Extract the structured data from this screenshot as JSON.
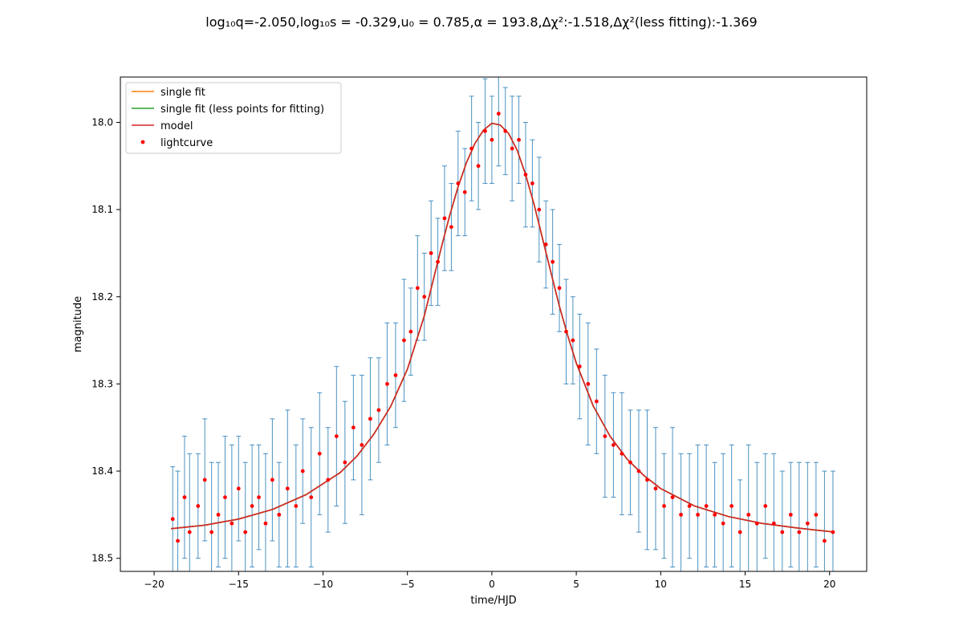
{
  "figure": {
    "title": "log₁₀q=-2.050,log₁₀s = -0.329,u₀ = 0.785,α = 193.8,Δχ²:-1.518,Δχ²(less fitting):-1.369"
  },
  "chart_data": {
    "type": "scatter",
    "title": "log₁₀q=-2.050,log₁₀s = -0.329,u₀ = 0.785,α = 193.8,Δχ²:-1.518,Δχ²(less fitting):-1.369",
    "xlabel": "time/HJD",
    "ylabel": "magnitude",
    "xlim": [
      -22,
      22.2
    ],
    "ylim": [
      18.515,
      17.948
    ],
    "y_inverted": true,
    "xticks": [
      -20,
      -15,
      -10,
      -5,
      0,
      5,
      10,
      15,
      20
    ],
    "xtick_labels": [
      "−20",
      "−15",
      "−10",
      "−5",
      "0",
      "5",
      "10",
      "15",
      "20"
    ],
    "yticks": [
      18.0,
      18.1,
      18.2,
      18.3,
      18.4,
      18.5
    ],
    "ytick_labels": [
      "18.0",
      "18.1",
      "18.2",
      "18.3",
      "18.4",
      "18.5"
    ],
    "grid": false,
    "legend_position": "top-left",
    "colors": {
      "single_fit": "#ff7f0e",
      "single_fit_less": "#2ca02c",
      "model": "#d62728",
      "lightcurve": "#ff0000",
      "errorbar": "#1f77b4"
    },
    "series": [
      {
        "name": "single fit",
        "kind": "line"
      },
      {
        "name": "single fit (less points for fitting)",
        "kind": "line"
      },
      {
        "name": "model",
        "kind": "line",
        "x": [
          -19,
          -17,
          -15,
          -13,
          -11,
          -9,
          -8,
          -7,
          -6,
          -5,
          -4,
          -3.5,
          -3,
          -2.5,
          -2,
          -1.5,
          -1,
          -0.5,
          0,
          0.5,
          1,
          1.5,
          2,
          2.5,
          3,
          3.5,
          4,
          4.5,
          5,
          6,
          7,
          8,
          9,
          10,
          12,
          14,
          16,
          18,
          20.3
        ],
        "y": [
          18.466,
          18.462,
          18.455,
          18.444,
          18.427,
          18.402,
          18.383,
          18.358,
          18.326,
          18.283,
          18.222,
          18.183,
          18.144,
          18.107,
          18.074,
          18.046,
          18.024,
          18.009,
          18.001,
          18.003,
          18.013,
          18.032,
          18.06,
          18.094,
          18.133,
          18.172,
          18.211,
          18.245,
          18.276,
          18.325,
          18.36,
          18.386,
          18.405,
          18.42,
          18.44,
          18.452,
          18.46,
          18.465,
          18.47
        ]
      },
      {
        "name": "lightcurve",
        "kind": "scatter_errorbar",
        "x": [
          -18.9,
          -18.6,
          -18.2,
          -17.9,
          -17.4,
          -17.0,
          -16.6,
          -16.2,
          -15.8,
          -15.4,
          -15.0,
          -14.6,
          -14.2,
          -13.8,
          -13.4,
          -13.0,
          -12.6,
          -12.1,
          -11.6,
          -11.2,
          -10.7,
          -10.2,
          -9.7,
          -9.2,
          -8.7,
          -8.2,
          -7.7,
          -7.2,
          -6.7,
          -6.2,
          -5.7,
          -5.2,
          -4.8,
          -4.4,
          -4.0,
          -3.6,
          -3.2,
          -2.8,
          -2.4,
          -2.0,
          -1.6,
          -1.2,
          -0.8,
          -0.4,
          0.0,
          0.4,
          0.8,
          1.2,
          1.6,
          2.0,
          2.4,
          2.8,
          3.2,
          3.6,
          4.0,
          4.4,
          4.8,
          5.2,
          5.7,
          6.2,
          6.7,
          7.2,
          7.7,
          8.2,
          8.7,
          9.2,
          9.7,
          10.2,
          10.7,
          11.2,
          11.7,
          12.2,
          12.7,
          13.2,
          13.7,
          14.2,
          14.7,
          15.2,
          15.7,
          16.2,
          16.7,
          17.2,
          17.7,
          18.2,
          18.7,
          19.2,
          19.7,
          20.2
        ],
        "y": [
          18.455,
          18.48,
          18.43,
          18.47,
          18.44,
          18.41,
          18.47,
          18.45,
          18.43,
          18.46,
          18.42,
          18.47,
          18.44,
          18.43,
          18.46,
          18.41,
          18.45,
          18.42,
          18.44,
          18.4,
          18.43,
          18.38,
          18.41,
          18.36,
          18.39,
          18.35,
          18.37,
          18.34,
          18.33,
          18.3,
          18.29,
          18.25,
          18.24,
          18.19,
          18.2,
          18.15,
          18.16,
          18.11,
          18.12,
          18.07,
          18.08,
          18.03,
          18.05,
          18.01,
          18.02,
          17.99,
          18.01,
          18.03,
          18.02,
          18.06,
          18.07,
          18.1,
          18.14,
          18.16,
          18.19,
          18.24,
          18.25,
          18.28,
          18.3,
          18.32,
          18.36,
          18.37,
          18.38,
          18.39,
          18.4,
          18.41,
          18.42,
          18.44,
          18.43,
          18.45,
          18.44,
          18.45,
          18.44,
          18.45,
          18.46,
          18.44,
          18.47,
          18.45,
          18.46,
          18.44,
          18.46,
          18.47,
          18.45,
          18.47,
          18.46,
          18.45,
          18.48,
          18.47
        ],
        "yerr": [
          0.06,
          0.08,
          0.07,
          0.09,
          0.06,
          0.07,
          0.08,
          0.06,
          0.07,
          0.09,
          0.06,
          0.08,
          0.07,
          0.06,
          0.08,
          0.07,
          0.06,
          0.09,
          0.07,
          0.06,
          0.08,
          0.07,
          0.06,
          0.08,
          0.07,
          0.06,
          0.08,
          0.07,
          0.06,
          0.07,
          0.06,
          0.07,
          0.05,
          0.06,
          0.05,
          0.06,
          0.05,
          0.06,
          0.05,
          0.06,
          0.05,
          0.06,
          0.05,
          0.06,
          0.05,
          0.06,
          0.05,
          0.06,
          0.05,
          0.06,
          0.05,
          0.06,
          0.05,
          0.06,
          0.05,
          0.06,
          0.05,
          0.06,
          0.07,
          0.06,
          0.07,
          0.06,
          0.07,
          0.06,
          0.07,
          0.08,
          0.07,
          0.06,
          0.08,
          0.07,
          0.06,
          0.08,
          0.07,
          0.06,
          0.08,
          0.07,
          0.06,
          0.08,
          0.07,
          0.06,
          0.08,
          0.07,
          0.06,
          0.08,
          0.07,
          0.06,
          0.08,
          0.07
        ]
      }
    ]
  }
}
